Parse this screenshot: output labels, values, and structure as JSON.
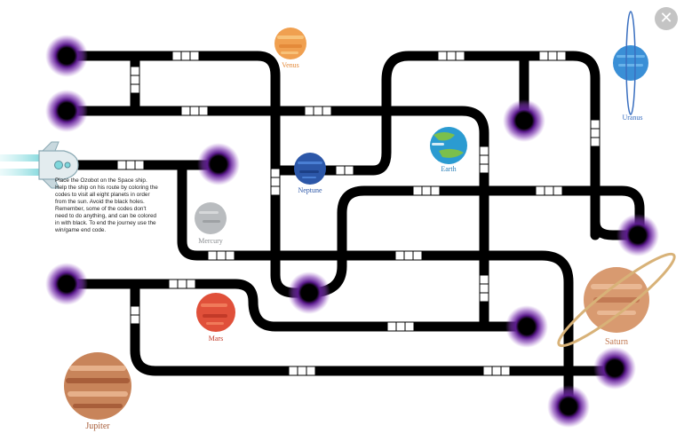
{
  "instructions": "Place the Ozobot on the Space ship. Help the ship on his route by coloring the codes to visit all eight planets in order from the sun. Avoid the black holes. Remember, some of the codes don't need to do anything, and can be colored in with black. To end the journey use the win/game end code.",
  "planets": {
    "venus": "Venus",
    "uranus": "Uranus",
    "earth": "Earth",
    "neptune": "Neptune",
    "mercury": "Mercury",
    "mars": "Mars",
    "saturn": "Saturn",
    "jupiter": "Jupiter"
  },
  "close_icon": "close-icon",
  "colors": {
    "track": "#000000",
    "black_hole_glow": "#5a1a8c",
    "venus": "#f0a050",
    "uranus": "#3a8fd6",
    "earth": "#2b9bd1",
    "neptune": "#2c57a8",
    "mercury": "#b9bcbf",
    "mars": "#e0503a",
    "saturn": "#d89a70",
    "jupiter": "#c8845a"
  }
}
